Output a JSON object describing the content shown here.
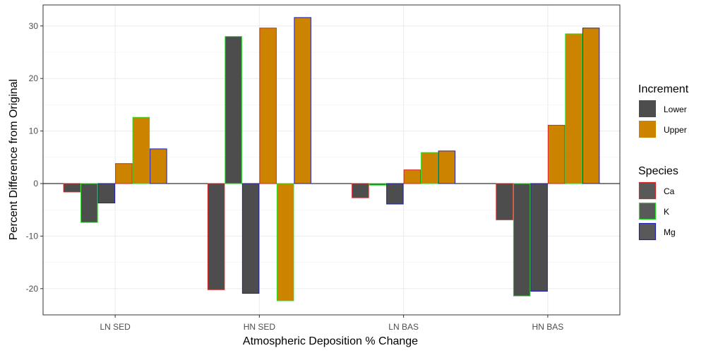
{
  "chart_data": {
    "type": "bar",
    "title": "",
    "xlabel": "Atmospheric Deposition % Change",
    "ylabel": "Percent Difference from Original",
    "categories": [
      "LN SED",
      "HN SED",
      "LN BAS",
      "HN BAS"
    ],
    "ylim": [
      -25,
      34
    ],
    "yticks": [
      -20,
      -10,
      0,
      10,
      20,
      30
    ],
    "grid": true,
    "legend_position": "right",
    "increments": [
      "Lower",
      "Upper"
    ],
    "species": [
      "Ca",
      "K",
      "Mg"
    ],
    "series": [
      {
        "increment": "Lower",
        "species": "Ca",
        "values": [
          -1.6,
          -20.2,
          -2.7,
          -6.9
        ]
      },
      {
        "increment": "Lower",
        "species": "K",
        "values": [
          -7.4,
          28.0,
          -0.3,
          -21.4
        ]
      },
      {
        "increment": "Lower",
        "species": "Mg",
        "values": [
          -3.7,
          -20.9,
          -3.9,
          -20.5
        ]
      },
      {
        "increment": "Upper",
        "species": "Ca",
        "values": [
          3.8,
          29.6,
          2.6,
          11.1
        ]
      },
      {
        "increment": "Upper",
        "species": "K",
        "values": [
          12.6,
          -22.3,
          5.9,
          28.5
        ]
      },
      {
        "increment": "Upper",
        "species": "Mg",
        "values": [
          6.6,
          31.6,
          6.2,
          29.6
        ]
      }
    ]
  },
  "legend": {
    "increment_title": "Increment",
    "increment_items": [
      {
        "label": "Lower",
        "color": "#4d4d4d"
      },
      {
        "label": "Upper",
        "color": "#cc8400"
      }
    ],
    "species_title": "Species",
    "species_items": [
      {
        "label": "Ca",
        "color": "#d62728"
      },
      {
        "label": "K",
        "color": "#22dd22"
      },
      {
        "label": "Mg",
        "color": "#1f1fb4"
      }
    ]
  },
  "colors": {
    "lower_fill": "#4d4d4d",
    "upper_fill": "#cc8400",
    "Ca": "#d62728",
    "K": "#22dd22",
    "Mg": "#1f1fb4",
    "legend_key_fill": "#595959"
  }
}
